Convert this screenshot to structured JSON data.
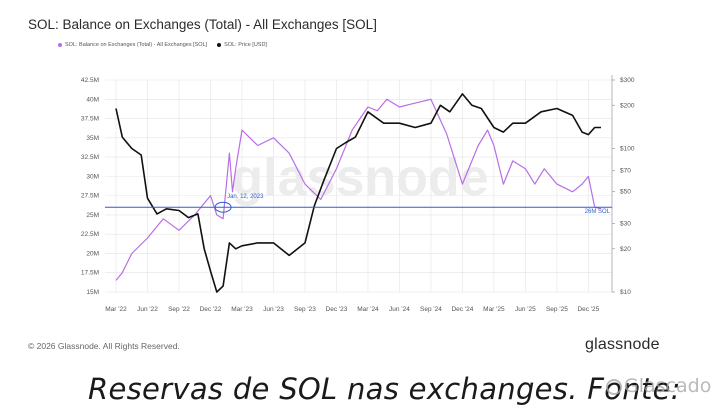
{
  "title": "SOL: Balance on Exchanges (Total) - All Exchanges [SOL]",
  "legend": {
    "balance": "SOL: Balance on Exchanges (Total) - All Exchanges [SOL]",
    "price": "SOL: Price [USD]"
  },
  "watermark": "glassnode",
  "footer": {
    "copyright": "© 2026 Glassnode. All Rights Reserved.",
    "logo": "glassnode"
  },
  "caption": "Reservas de SOL nas exchanges. Fonte:",
  "caption_watermark": "Glascado",
  "colors": {
    "balance": "#b86ee6",
    "price": "#111111",
    "baseline": "#2f5fd6",
    "grid": "#e4e4e4"
  },
  "chart_data": {
    "type": "line",
    "x_ticks": [
      "Mar '22",
      "Jun '22",
      "Sep '22",
      "Dec '22",
      "Mar '23",
      "Jun '23",
      "Sep '23",
      "Dec '23",
      "Mar '24",
      "Jun '24",
      "Sep '24",
      "Dec '24",
      "Mar '25",
      "Jun '25",
      "Sep '25",
      "Dec '25"
    ],
    "y_left_ticks": [
      "15M",
      "17.5M",
      "20M",
      "22.5M",
      "25M",
      "27.5M",
      "30M",
      "32.5M",
      "35M",
      "37.5M",
      "40M",
      "42.5M"
    ],
    "y_left_range": [
      15,
      42.5
    ],
    "y_right_ticks": [
      "$10",
      "$20",
      "$30",
      "$50",
      "$70",
      "$100",
      "$200",
      "$300"
    ],
    "y_right_values": [
      10,
      20,
      30,
      50,
      70,
      100,
      200,
      300
    ],
    "y_right_scale": "log",
    "annotation": {
      "label": "Jan. 12, 2023",
      "x": 3.4,
      "y": 26
    },
    "baseline": {
      "label": "26M SOL",
      "value": 26
    },
    "series": [
      {
        "name": "SOL: Balance on Exchanges (Total) - All Exchanges [SOL]",
        "axis": "left",
        "x": [
          0,
          0.2,
          0.5,
          1,
          1.5,
          2,
          2.5,
          3,
          3.2,
          3.4,
          3.6,
          3.7,
          3.8,
          4,
          4.5,
          5,
          5.5,
          6,
          6.5,
          7,
          7.5,
          8,
          8.3,
          8.6,
          9,
          9.5,
          10,
          10.5,
          11,
          11.5,
          11.8,
          12,
          12.3,
          12.6,
          13,
          13.3,
          13.6,
          14,
          14.5,
          14.8,
          15,
          15.2,
          15.4
        ],
        "y": [
          16.5,
          17.5,
          20,
          22,
          24.5,
          23,
          25,
          27.5,
          25,
          24.5,
          33,
          28,
          31,
          36,
          34,
          35,
          33,
          29,
          27,
          31,
          36,
          39,
          38.5,
          40,
          39,
          39.5,
          40,
          35.5,
          29,
          34,
          36,
          34,
          29,
          32,
          31,
          29,
          31,
          29,
          28,
          29,
          30,
          26,
          25.8
        ]
      },
      {
        "name": "SOL: Price [USD]",
        "axis": "right",
        "x": [
          0,
          0.2,
          0.5,
          0.8,
          1,
          1.3,
          1.6,
          2,
          2.3,
          2.6,
          2.8,
          3,
          3.2,
          3.4,
          3.6,
          3.8,
          4,
          4.5,
          5,
          5.5,
          6,
          6.3,
          6.6,
          7,
          7.3,
          7.6,
          8,
          8.5,
          9,
          9.5,
          10,
          10.3,
          10.6,
          11,
          11.3,
          11.6,
          12,
          12.3,
          12.6,
          13,
          13.5,
          14,
          14.5,
          14.8,
          15,
          15.2,
          15.4
        ],
        "y": [
          190,
          120,
          100,
          90,
          45,
          35,
          38,
          37,
          33,
          35,
          20,
          14,
          10,
          11,
          22,
          20,
          21,
          22,
          22,
          18,
          22,
          40,
          60,
          100,
          110,
          120,
          180,
          150,
          150,
          140,
          150,
          200,
          180,
          240,
          200,
          190,
          140,
          130,
          150,
          150,
          180,
          190,
          170,
          130,
          125,
          140,
          140
        ]
      }
    ]
  }
}
